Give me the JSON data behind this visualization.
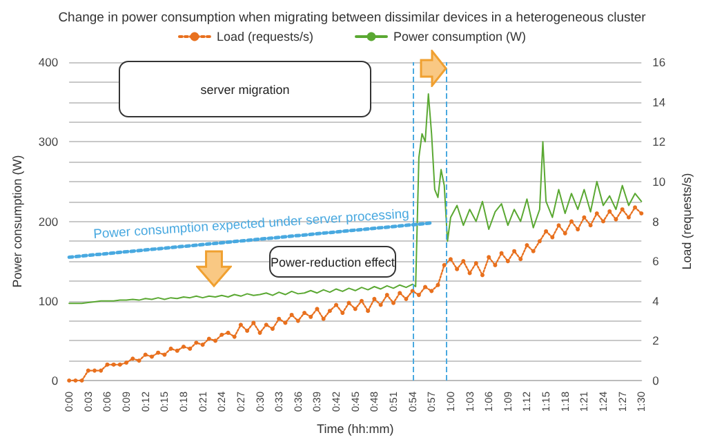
{
  "chart_data": {
    "type": "line",
    "title": "Change in power consumption when migrating between dissimilar devices in a heterogeneous cluster",
    "xlabel": "Time (hh:mm)",
    "ylabel": "Power consumption (W)",
    "y2label": "Load (requests/s)",
    "xlim": [
      0,
      1.5
    ],
    "xticks": [
      {
        "value": 0,
        "label": "0:00"
      },
      {
        "value": 0.05,
        "label": "0:03"
      },
      {
        "value": 0.1,
        "label": "0:06"
      },
      {
        "value": 0.15,
        "label": "0:09"
      },
      {
        "value": 0.2,
        "label": "0:12"
      },
      {
        "value": 0.25,
        "label": "0:15"
      },
      {
        "value": 0.3,
        "label": "0:18"
      },
      {
        "value": 0.35,
        "label": "0:21"
      },
      {
        "value": 0.4,
        "label": "0:24"
      },
      {
        "value": 0.45,
        "label": "0:27"
      },
      {
        "value": 0.5,
        "label": "0:30"
      },
      {
        "value": 0.55,
        "label": "0:33"
      },
      {
        "value": 0.6,
        "label": "0:36"
      },
      {
        "value": 0.65,
        "label": "0:39"
      },
      {
        "value": 0.7,
        "label": "0:42"
      },
      {
        "value": 0.75,
        "label": "0:45"
      },
      {
        "value": 0.8,
        "label": "0:48"
      },
      {
        "value": 0.85,
        "label": "0:51"
      },
      {
        "value": 0.9,
        "label": "0:54"
      },
      {
        "value": 0.95,
        "label": "0:57"
      },
      {
        "value": 1,
        "label": "1:00"
      },
      {
        "value": 1.05,
        "label": "1:03"
      },
      {
        "value": 1.1,
        "label": "1:06"
      },
      {
        "value": 1.15,
        "label": "1:09"
      },
      {
        "value": 1.2,
        "label": "1:12"
      },
      {
        "value": 1.25,
        "label": "1:15"
      },
      {
        "value": 1.3,
        "label": "1:18"
      },
      {
        "value": 1.35,
        "label": "1:21"
      },
      {
        "value": 1.4,
        "label": "1:24"
      },
      {
        "value": 1.45,
        "label": "1:27"
      },
      {
        "value": 1.5,
        "label": "1:30"
      }
    ],
    "ylim": [
      0,
      400
    ],
    "yticks": [
      0,
      {
        "value": 25,
        "label": null
      },
      {
        "value": 50,
        "label": null
      },
      {
        "value": 75,
        "label": null
      },
      100,
      {
        "value": 125,
        "label": null
      },
      {
        "value": 150,
        "label": null
      },
      {
        "value": 175,
        "label": null
      },
      200,
      {
        "value": 225,
        "label": null
      },
      {
        "value": 250,
        "label": null
      },
      {
        "value": 275,
        "label": null
      },
      300,
      {
        "value": 325,
        "label": null
      },
      {
        "value": 350,
        "label": null
      },
      {
        "value": 375,
        "label": null
      },
      400
    ],
    "y2lim": [
      0,
      16
    ],
    "y2ticks": [
      0,
      2,
      4,
      6,
      8,
      10,
      12,
      14,
      16
    ],
    "grid": "y",
    "legend": "top",
    "series": [
      {
        "name": "Load (requests/s)",
        "color": "#e8701e",
        "axis": "y2",
        "line_style": "dotted",
        "marker": "circle",
        "x": [
          0,
          0.0167,
          0.0333,
          0.05,
          0.0667,
          0.0833,
          0.1,
          0.1167,
          0.1333,
          0.15,
          0.1667,
          0.1833,
          0.2,
          0.2167,
          0.2333,
          0.25,
          0.2667,
          0.2833,
          0.3,
          0.3167,
          0.3333,
          0.35,
          0.3667,
          0.3833,
          0.4,
          0.4167,
          0.4333,
          0.45,
          0.4667,
          0.4833,
          0.5,
          0.5167,
          0.5333,
          0.55,
          0.5667,
          0.5833,
          0.6,
          0.6167,
          0.6333,
          0.65,
          0.6667,
          0.6833,
          0.7,
          0.7167,
          0.7333,
          0.75,
          0.7667,
          0.7833,
          0.8,
          0.8167,
          0.8333,
          0.85,
          0.8667,
          0.8833,
          0.9,
          0.9167,
          0.9333,
          0.95,
          0.9667,
          0.9833,
          1,
          1.0167,
          1.0333,
          1.05,
          1.0667,
          1.0833,
          1.1,
          1.1167,
          1.1333,
          1.15,
          1.1667,
          1.1833,
          1.2,
          1.2167,
          1.2333,
          1.25,
          1.2667,
          1.2833,
          1.3,
          1.3167,
          1.3333,
          1.35,
          1.3667,
          1.3833,
          1.4,
          1.4167,
          1.4333,
          1.45,
          1.4667,
          1.4833,
          1.5
        ],
        "values": [
          0,
          0,
          0,
          0.5,
          0.5,
          0.5,
          0.8,
          0.8,
          0.8,
          0.9,
          1.1,
          1.0,
          1.3,
          1.2,
          1.4,
          1.3,
          1.6,
          1.5,
          1.7,
          1.6,
          1.9,
          1.8,
          2.1,
          2.0,
          2.3,
          2.4,
          2.2,
          2.8,
          2.5,
          2.9,
          2.4,
          2.8,
          2.6,
          3.1,
          2.9,
          3.3,
          3.0,
          3.4,
          3.2,
          3.6,
          3.1,
          3.5,
          3.8,
          3.4,
          3.9,
          3.6,
          4.0,
          3.5,
          4.1,
          3.8,
          4.3,
          3.9,
          4.4,
          4.1,
          4.5,
          4.3,
          4.7,
          4.5,
          4.8,
          5.8,
          6.1,
          5.6,
          6.0,
          5.4,
          5.9,
          5.3,
          6.2,
          5.8,
          6.4,
          6.0,
          6.5,
          6.1,
          6.8,
          6.5,
          7.0,
          7.5,
          7.2,
          7.8,
          7.4,
          8.0,
          7.6,
          8.2,
          7.8,
          8.4,
          8.0,
          8.5,
          8.1,
          8.6,
          8.2,
          8.7,
          8.4
        ]
      },
      {
        "name": "Power consumption (W)",
        "color": "#5aa832",
        "line_style": "solid",
        "marker": "none",
        "x": [
          0,
          0.0167,
          0.0333,
          0.05,
          0.0667,
          0.0833,
          0.1,
          0.1167,
          0.1333,
          0.15,
          0.1667,
          0.1833,
          0.2,
          0.2167,
          0.2333,
          0.25,
          0.2667,
          0.2833,
          0.3,
          0.3167,
          0.3333,
          0.35,
          0.3667,
          0.3833,
          0.4,
          0.4167,
          0.4333,
          0.45,
          0.4667,
          0.4833,
          0.5,
          0.5167,
          0.5333,
          0.55,
          0.5667,
          0.5833,
          0.6,
          0.6167,
          0.6333,
          0.65,
          0.6667,
          0.6833,
          0.7,
          0.7167,
          0.7333,
          0.75,
          0.7667,
          0.7833,
          0.8,
          0.8167,
          0.8333,
          0.85,
          0.8667,
          0.8833,
          0.9,
          0.9083,
          0.9167,
          0.925,
          0.9333,
          0.9417,
          0.95,
          0.9583,
          0.9667,
          0.975,
          0.9833,
          0.9917,
          1,
          1.0167,
          1.0333,
          1.05,
          1.0667,
          1.0833,
          1.1,
          1.1167,
          1.1333,
          1.15,
          1.1667,
          1.1833,
          1.2,
          1.2167,
          1.2333,
          1.2417,
          1.25,
          1.2667,
          1.2833,
          1.3,
          1.3167,
          1.3333,
          1.35,
          1.3667,
          1.3833,
          1.4,
          1.4167,
          1.4333,
          1.45,
          1.4667,
          1.4833,
          1.5
        ],
        "values": [
          97,
          97,
          97,
          98,
          99,
          100,
          100,
          100,
          101,
          101,
          102,
          101,
          103,
          102,
          104,
          102,
          104,
          103,
          105,
          104,
          106,
          104,
          106,
          105,
          107,
          105,
          108,
          106,
          109,
          107,
          108,
          110,
          107,
          111,
          108,
          112,
          109,
          110,
          113,
          110,
          114,
          111,
          115,
          112,
          116,
          113,
          117,
          114,
          118,
          115,
          119,
          116,
          120,
          117,
          121,
          118,
          280,
          310,
          300,
          360,
          310,
          240,
          230,
          265,
          245,
          175,
          205,
          220,
          195,
          215,
          200,
          225,
          190,
          212,
          222,
          195,
          215,
          200,
          228,
          192,
          215,
          300,
          225,
          205,
          240,
          210,
          235,
          215,
          240,
          212,
          250,
          220,
          232,
          215,
          245,
          220,
          235,
          225
        ]
      },
      {
        "color": "#49a9e0",
        "line_style": "dotted",
        "marker": "none",
        "x": [
          0,
          0.95
        ],
        "values": [
          155,
          198
        ]
      }
    ],
    "ref_lines": [
      {
        "axis": "x",
        "value": 0.903,
        "color": "#49a9e0",
        "line_style": "dashed"
      },
      {
        "axis": "x",
        "value": 0.992,
        "color": "#49a9e0",
        "line_style": "dashed"
      }
    ],
    "annotations": [
      "server migration",
      "Power-reduction effect",
      "Power consumption expected under server processing"
    ]
  }
}
